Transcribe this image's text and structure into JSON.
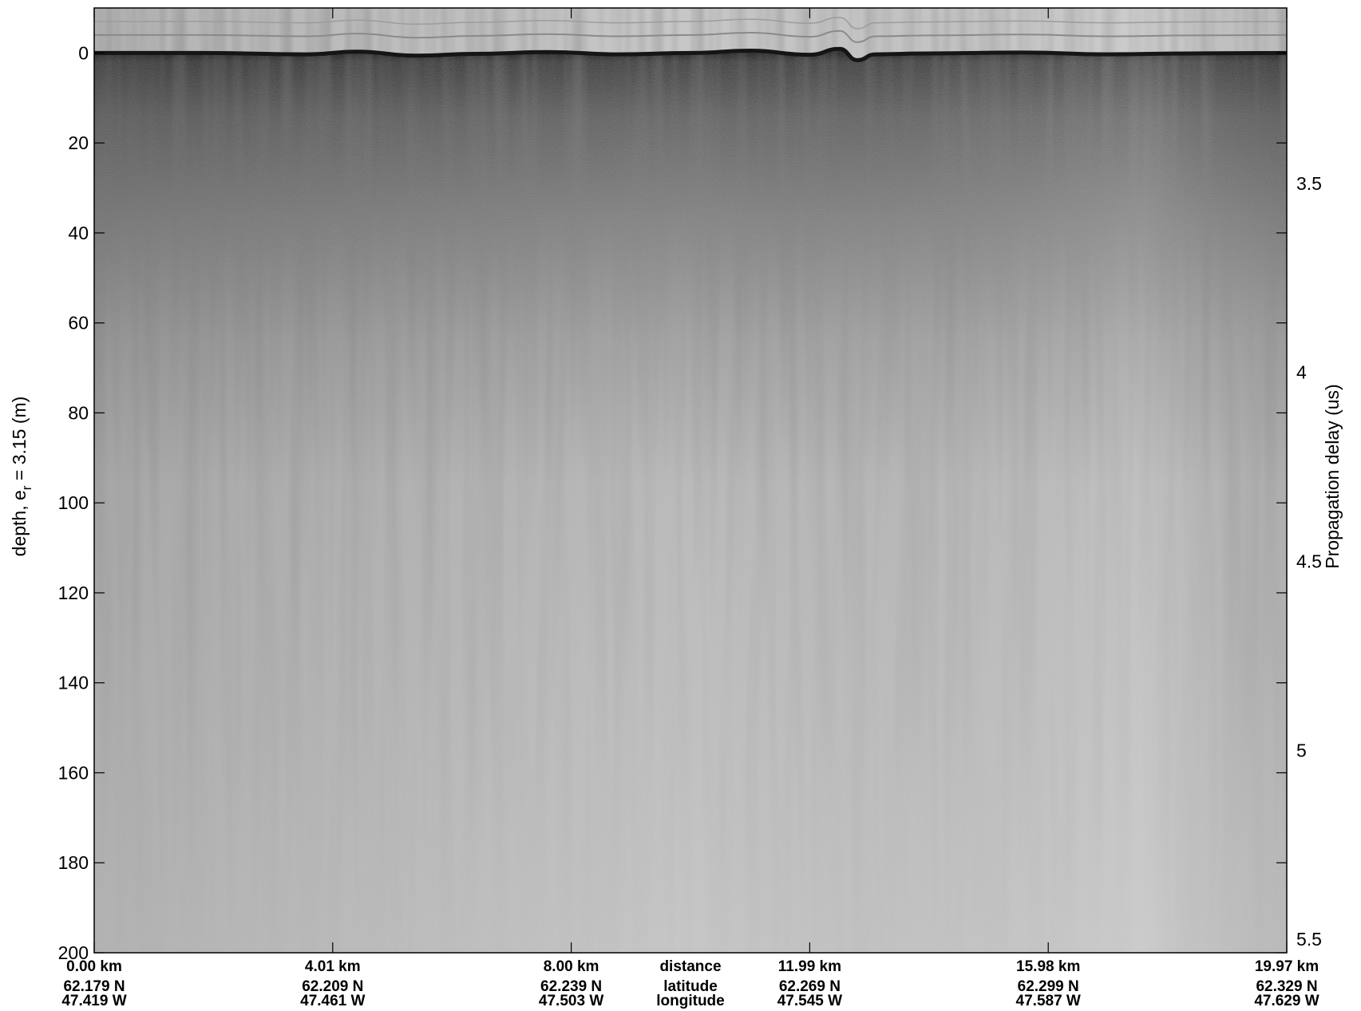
{
  "chart_data": {
    "type": "heatmap",
    "description_kind": "radar echogram",
    "left_axis": {
      "label": "depth, e",
      "label_subscript": "r",
      "label_suffix": " = 3.15 (m)",
      "ylim": [
        -10,
        200
      ],
      "ticks": [
        0,
        20,
        40,
        60,
        80,
        100,
        120,
        140,
        160,
        180,
        200
      ],
      "tick_labels": [
        "0",
        "20",
        "40",
        "60",
        "80",
        "100",
        "120",
        "140",
        "160",
        "180",
        "200"
      ]
    },
    "right_axis": {
      "label": "Propagation delay (us)",
      "ticks": [
        3.5,
        4,
        4.5,
        5,
        5.5
      ],
      "tick_labels": [
        "3.5",
        "4",
        "4.5",
        "5",
        "5.5"
      ],
      "tick_depths": [
        29,
        71,
        113,
        155,
        197
      ]
    },
    "bottom_axis": {
      "tick_fractions": [
        0,
        0.2,
        0.4,
        0.6,
        0.8,
        1.0
      ],
      "center_fraction": 0.5,
      "row_names": [
        "distance",
        "latitude",
        "longitude"
      ],
      "distance": [
        "0.00 km",
        "4.01 km",
        "8.00 km",
        "11.99 km",
        "15.98 km",
        "19.97 km"
      ],
      "latitude": [
        "62.179 N",
        "62.209 N",
        "62.239 N",
        "62.269 N",
        "62.299 N",
        "62.329 N"
      ],
      "longitude": [
        "47.419 W",
        "47.461 W",
        "47.503 W",
        "47.545 W",
        "47.587 W",
        "47.629 W"
      ]
    },
    "surface_profile": {
      "x_fraction": [
        0,
        0.09,
        0.18,
        0.22,
        0.27,
        0.32,
        0.38,
        0.44,
        0.5,
        0.55,
        0.6,
        0.625,
        0.64,
        0.655,
        0.7,
        0.78,
        0.85,
        0.92,
        1.0
      ],
      "depth_m": [
        0,
        0,
        0.3,
        -0.3,
        0.6,
        0.2,
        -0.2,
        0.3,
        0,
        -0.5,
        0.4,
        -0.9,
        1.6,
        0.3,
        0.1,
        -0.1,
        0.3,
        0.1,
        0
      ]
    },
    "colors": {
      "background": "#c9c9c9",
      "surface": "#151515",
      "near_surface": "#5c5c5c",
      "deep": "#c8c8c8",
      "axis": "#000000"
    }
  }
}
